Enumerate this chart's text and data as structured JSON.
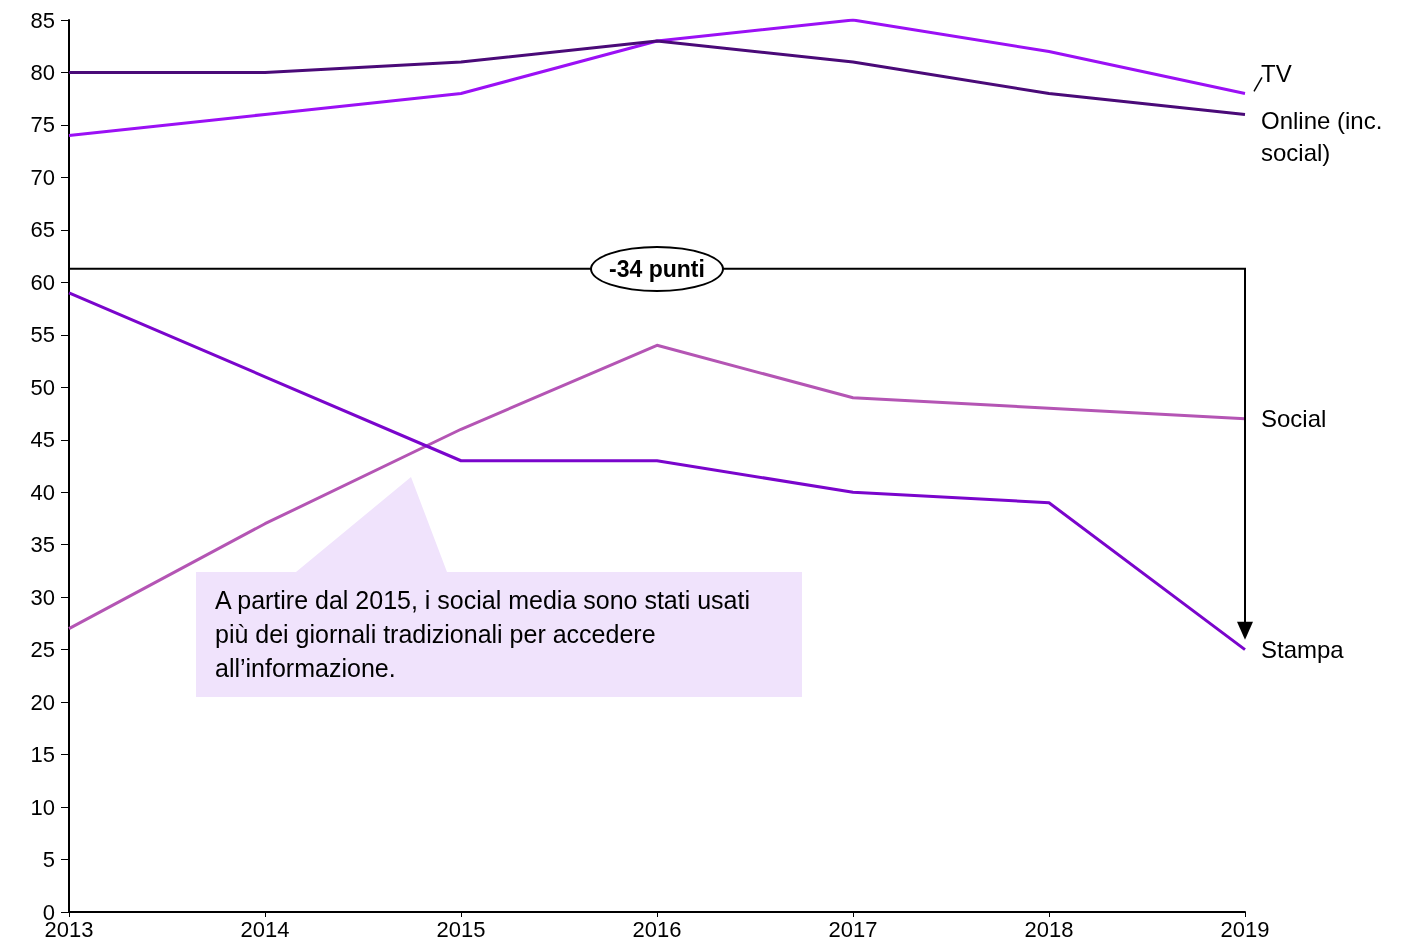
{
  "chart_data": {
    "type": "line",
    "x": [
      2013,
      2014,
      2015,
      2016,
      2017,
      2018,
      2019
    ],
    "xlim": [
      2013,
      2019
    ],
    "xticks": [
      2013,
      2014,
      2015,
      2016,
      2017,
      2018,
      2019
    ],
    "ylim": [
      0,
      85
    ],
    "yticks": [
      0,
      5,
      10,
      15,
      20,
      25,
      30,
      35,
      40,
      45,
      50,
      55,
      60,
      65,
      70,
      75,
      80,
      85
    ],
    "series": [
      {
        "name": "TV",
        "color": "#9b10f5",
        "values": [
          74,
          76,
          78,
          83,
          85,
          82,
          78
        ]
      },
      {
        "name": "Online (inc. social)",
        "color": "#4a0a78",
        "values": [
          80,
          80,
          81,
          83,
          81,
          78,
          76
        ]
      },
      {
        "name": "Social",
        "color": "#b455b4",
        "values": [
          27,
          37,
          46,
          54,
          49,
          48,
          47
        ]
      },
      {
        "name": "Stampa",
        "color": "#7a05cc",
        "values": [
          59,
          51,
          43,
          43,
          40,
          39,
          25
        ]
      }
    ],
    "annotations": [
      "-34 punti",
      "A partire dal 2015, i social media sono stati usati più dei giornali tradizionali per accedere all’informazione."
    ]
  }
}
